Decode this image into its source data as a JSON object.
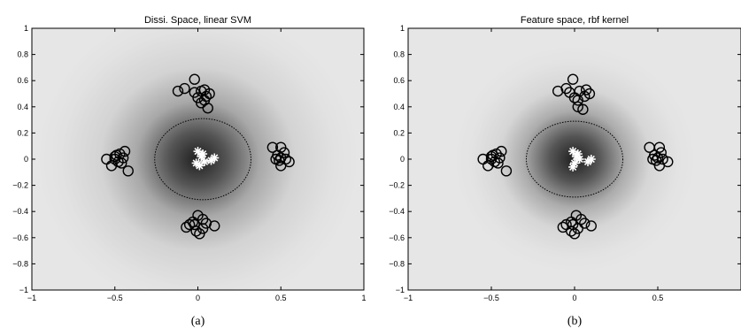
{
  "chart_data": [
    {
      "type": "scatter",
      "title": "Dissi. Space, linear SVM",
      "caption": "(a)",
      "xlim": [
        -1,
        1
      ],
      "ylim": [
        -1,
        1
      ],
      "xticks": [
        -1,
        -0.5,
        0,
        0.5,
        1
      ],
      "xtick_labels": [
        "−1",
        "−0.5",
        "0",
        "0.5",
        "1"
      ],
      "yticks": [
        1,
        0.8,
        0.6,
        0.4,
        0.2,
        0,
        -0.2,
        -0.4,
        -0.6,
        -0.8,
        -1
      ],
      "ytick_labels": [
        "1",
        "0.8",
        "0.6",
        "0.4",
        "0.2",
        "0",
        "−0.2",
        "−0.4",
        "−0.6",
        "−0.8",
        "−1"
      ],
      "grid": false,
      "background": "shaded gray density, darkest at center",
      "decision_boundary": {
        "shape": "ellipse",
        "center": [
          0.03,
          0.0
        ],
        "rx": 0.29,
        "ry": 0.31,
        "style": "dotted"
      },
      "series": [
        {
          "marker": "circle",
          "points": [
            [
              -0.12,
              0.52
            ],
            [
              -0.08,
              0.54
            ],
            [
              -0.02,
              0.61
            ],
            [
              0.02,
              0.52
            ],
            [
              0.05,
              0.48
            ],
            [
              0.07,
              0.5
            ],
            [
              0.04,
              0.45
            ],
            [
              0.02,
              0.43
            ],
            [
              0.06,
              0.39
            ],
            [
              0.0,
              0.47
            ],
            [
              -0.02,
              0.51
            ],
            [
              0.04,
              0.53
            ],
            [
              -0.55,
              0.0
            ],
            [
              -0.52,
              -0.05
            ],
            [
              -0.5,
              0.02
            ],
            [
              -0.48,
              -0.02
            ],
            [
              -0.47,
              0.04
            ],
            [
              -0.45,
              0.01
            ],
            [
              -0.44,
              0.06
            ],
            [
              -0.46,
              -0.03
            ],
            [
              -0.42,
              -0.09
            ],
            [
              -0.49,
              0.03
            ],
            [
              -0.5,
              0.0
            ],
            [
              0.45,
              0.09
            ],
            [
              0.5,
              0.09
            ],
            [
              0.52,
              0.05
            ],
            [
              0.48,
              0.03
            ],
            [
              0.5,
              0.01
            ],
            [
              0.47,
              0.0
            ],
            [
              0.55,
              -0.02
            ],
            [
              0.5,
              -0.05
            ],
            [
              0.53,
              0.0
            ],
            [
              0.49,
              -0.01
            ],
            [
              0.0,
              -0.43
            ],
            [
              -0.03,
              -0.48
            ],
            [
              -0.02,
              -0.5
            ],
            [
              0.03,
              -0.46
            ],
            [
              0.05,
              -0.49
            ],
            [
              -0.07,
              -0.52
            ],
            [
              -0.01,
              -0.55
            ],
            [
              0.03,
              -0.53
            ],
            [
              0.1,
              -0.51
            ],
            [
              -0.05,
              -0.5
            ],
            [
              0.01,
              -0.57
            ]
          ]
        },
        {
          "marker": "asterisk",
          "color": "#ffffff",
          "points": [
            [
              0.0,
              0.06
            ],
            [
              0.02,
              0.02
            ],
            [
              0.04,
              -0.02
            ],
            [
              -0.01,
              -0.03
            ],
            [
              0.01,
              -0.05
            ],
            [
              0.1,
              0.01
            ],
            [
              0.08,
              -0.01
            ],
            [
              0.03,
              0.04
            ]
          ]
        }
      ]
    },
    {
      "type": "scatter",
      "title": "Feature space, rbf kernel",
      "caption": "(b)",
      "xlim": [
        -1,
        1
      ],
      "ylim": [
        -1,
        1
      ],
      "xticks": [
        -1,
        -0.5,
        0,
        0.5
      ],
      "xtick_labels": [
        "−1",
        "−0.5",
        "0",
        "0.5"
      ],
      "yticks": [
        1,
        0.8,
        0.6,
        0.4,
        0.2,
        0,
        -0.2,
        -0.4,
        -0.6,
        -0.8,
        -1
      ],
      "ytick_labels": [
        "1",
        "0.8",
        "0.6",
        "0.4",
        "0.2",
        "0",
        "−0.2",
        "−0.4",
        "−0.6",
        "−0.8",
        "−1"
      ],
      "grid": false,
      "background": "shaded gray density, darkest at center",
      "decision_boundary": {
        "shape": "ellipse",
        "center": [
          0.0,
          0.0
        ],
        "rx": 0.29,
        "ry": 0.29,
        "style": "dotted"
      },
      "series": [
        {
          "marker": "circle",
          "points": [
            [
              -0.1,
              0.52
            ],
            [
              -0.05,
              0.54
            ],
            [
              -0.01,
              0.61
            ],
            [
              0.03,
              0.52
            ],
            [
              0.06,
              0.48
            ],
            [
              0.09,
              0.5
            ],
            [
              0.02,
              0.45
            ],
            [
              0.02,
              0.4
            ],
            [
              0.05,
              0.38
            ],
            [
              0.0,
              0.47
            ],
            [
              -0.03,
              0.51
            ],
            [
              0.07,
              0.53
            ],
            [
              -0.55,
              0.0
            ],
            [
              -0.52,
              -0.05
            ],
            [
              -0.5,
              0.02
            ],
            [
              -0.48,
              -0.02
            ],
            [
              -0.47,
              0.04
            ],
            [
              -0.45,
              0.01
            ],
            [
              -0.44,
              0.06
            ],
            [
              -0.46,
              -0.03
            ],
            [
              -0.41,
              -0.09
            ],
            [
              -0.49,
              0.03
            ],
            [
              -0.5,
              0.0
            ],
            [
              0.45,
              0.09
            ],
            [
              0.51,
              0.09
            ],
            [
              0.52,
              0.05
            ],
            [
              0.48,
              0.03
            ],
            [
              0.5,
              0.01
            ],
            [
              0.47,
              0.0
            ],
            [
              0.56,
              -0.02
            ],
            [
              0.51,
              -0.05
            ],
            [
              0.53,
              0.0
            ],
            [
              0.49,
              -0.01
            ],
            [
              0.01,
              -0.43
            ],
            [
              -0.02,
              -0.48
            ],
            [
              -0.01,
              -0.5
            ],
            [
              0.04,
              -0.46
            ],
            [
              0.06,
              -0.49
            ],
            [
              -0.07,
              -0.52
            ],
            [
              -0.02,
              -0.55
            ],
            [
              0.02,
              -0.53
            ],
            [
              0.1,
              -0.51
            ],
            [
              -0.05,
              -0.5
            ],
            [
              0.0,
              -0.57
            ]
          ]
        },
        {
          "marker": "asterisk",
          "color": "#ffffff",
          "points": [
            [
              -0.01,
              0.06
            ],
            [
              0.01,
              0.02
            ],
            [
              0.03,
              0.0
            ],
            [
              0.0,
              -0.03
            ],
            [
              -0.01,
              -0.06
            ],
            [
              0.1,
              0.0
            ],
            [
              0.08,
              -0.02
            ],
            [
              0.02,
              0.04
            ]
          ]
        }
      ]
    }
  ]
}
